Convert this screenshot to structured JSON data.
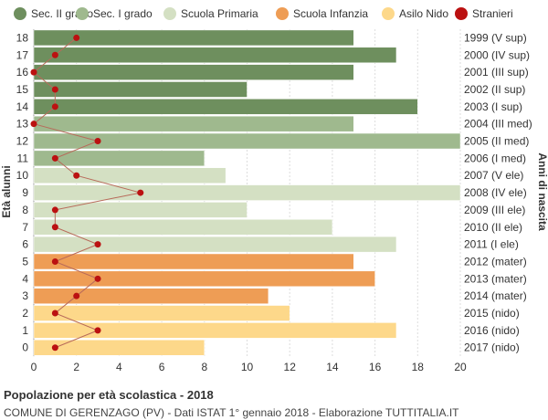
{
  "chart_data": {
    "type": "bar",
    "orientation": "horizontal",
    "title": "Popolazione per età scolastica - 2018",
    "subtitle": "COMUNE DI GERENZAGO (PV) - Dati ISTAT 1° gennaio 2018 - Elaborazione TUTTITALIA.IT",
    "ylabel_left": "Età alunni",
    "ylabel_right": "Anni di nascita",
    "xlim": [
      0,
      20
    ],
    "x_ticks": [
      0,
      2,
      4,
      6,
      8,
      10,
      12,
      14,
      16,
      18,
      20
    ],
    "grid": true,
    "legend_position": "top",
    "legend": [
      {
        "name": "Sec. II grado",
        "color": "#6e8f5e"
      },
      {
        "name": "Sec. I grado",
        "color": "#9fb98e"
      },
      {
        "name": "Scuola Primaria",
        "color": "#d4e0c3"
      },
      {
        "name": "Scuola Infanzia",
        "color": "#ee9d55"
      },
      {
        "name": "Asilo Nido",
        "color": "#fdd88a"
      },
      {
        "name": "Stranieri",
        "color": "#bb1111"
      }
    ],
    "rows": [
      {
        "age": "18",
        "birth": "1999 (V sup)",
        "value": 15,
        "foreign": 2,
        "group": 0
      },
      {
        "age": "17",
        "birth": "2000 (IV sup)",
        "value": 17,
        "foreign": 1,
        "group": 0
      },
      {
        "age": "16",
        "birth": "2001 (III sup)",
        "value": 15,
        "foreign": 0,
        "group": 0
      },
      {
        "age": "15",
        "birth": "2002 (II sup)",
        "value": 10,
        "foreign": 1,
        "group": 0
      },
      {
        "age": "14",
        "birth": "2003 (I sup)",
        "value": 18,
        "foreign": 1,
        "group": 0
      },
      {
        "age": "13",
        "birth": "2004 (III med)",
        "value": 15,
        "foreign": 0,
        "group": 1
      },
      {
        "age": "12",
        "birth": "2005 (II med)",
        "value": 20,
        "foreign": 3,
        "group": 1
      },
      {
        "age": "11",
        "birth": "2006 (I med)",
        "value": 8,
        "foreign": 1,
        "group": 1
      },
      {
        "age": "10",
        "birth": "2007 (V ele)",
        "value": 9,
        "foreign": 2,
        "group": 2
      },
      {
        "age": "9",
        "birth": "2008 (IV ele)",
        "value": 20,
        "foreign": 5,
        "group": 2
      },
      {
        "age": "8",
        "birth": "2009 (III ele)",
        "value": 10,
        "foreign": 1,
        "group": 2
      },
      {
        "age": "7",
        "birth": "2010 (II ele)",
        "value": 14,
        "foreign": 1,
        "group": 2
      },
      {
        "age": "6",
        "birth": "2011 (I ele)",
        "value": 17,
        "foreign": 3,
        "group": 2
      },
      {
        "age": "5",
        "birth": "2012 (mater)",
        "value": 15,
        "foreign": 1,
        "group": 3
      },
      {
        "age": "4",
        "birth": "2013 (mater)",
        "value": 16,
        "foreign": 3,
        "group": 3
      },
      {
        "age": "3",
        "birth": "2014 (mater)",
        "value": 11,
        "foreign": 2,
        "group": 3
      },
      {
        "age": "2",
        "birth": "2015 (nido)",
        "value": 12,
        "foreign": 1,
        "group": 4
      },
      {
        "age": "1",
        "birth": "2016 (nido)",
        "value": 17,
        "foreign": 3,
        "group": 4
      },
      {
        "age": "0",
        "birth": "2017 (nido)",
        "value": 8,
        "foreign": 1,
        "group": 4
      }
    ]
  }
}
